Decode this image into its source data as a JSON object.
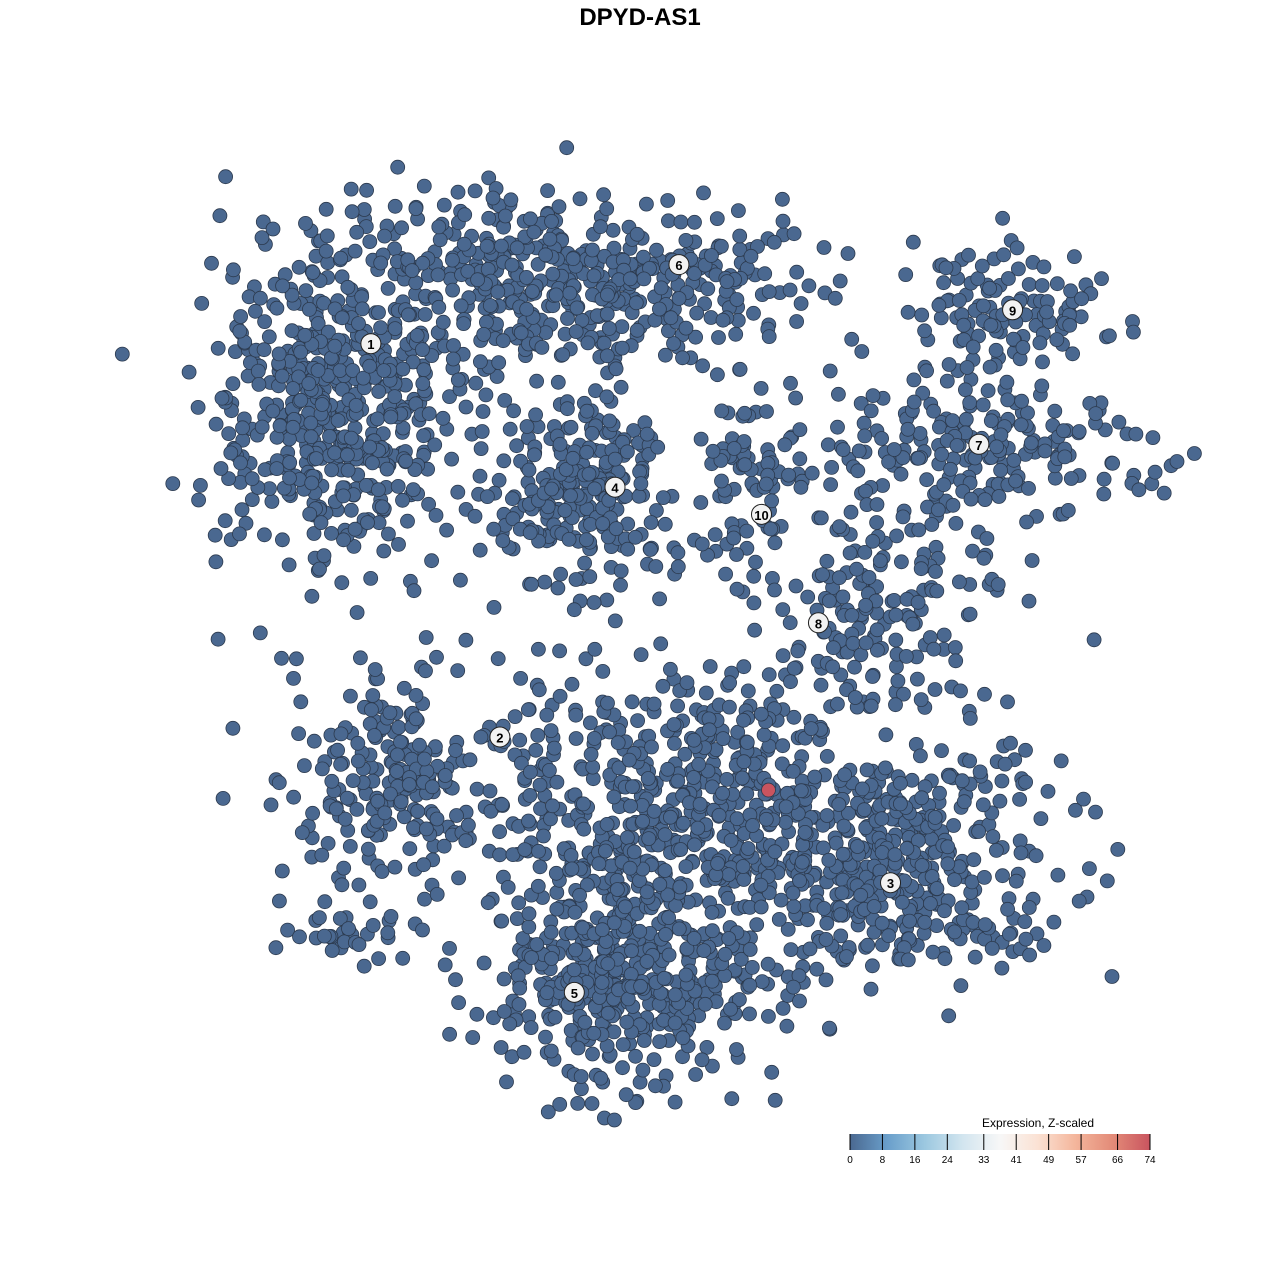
{
  "chart_data": {
    "type": "scatter",
    "title": "DPYD-AS1",
    "xlabel": "",
    "ylabel": "",
    "axes_visible": false,
    "grid": false,
    "xlim": [
      -40,
      40
    ],
    "ylim": [
      -40,
      40
    ],
    "point_color_default": "#4a6890",
    "clusters": [
      {
        "label": "1",
        "label_pos": [
          -25.3,
          26.0
        ],
        "center": [
          -28.6,
          20.1
        ],
        "spread": [
          5.2,
          7.1
        ],
        "n": 520
      },
      {
        "label": "6",
        "label_pos": [
          1.2,
          33.0
        ],
        "center": [
          -9.0,
          31.6
        ],
        "spread": [
          10.3,
          4.0
        ],
        "n": 520
      },
      {
        "label": "4",
        "label_pos": [
          -4.3,
          13.3
        ],
        "center": [
          -7.3,
          13.1
        ],
        "spread": [
          3.9,
          4.0
        ],
        "n": 260
      },
      {
        "label": "10",
        "label_pos": [
          8.3,
          10.9
        ],
        "center": [
          8.2,
          14.0
        ],
        "spread": [
          3.4,
          4.4
        ],
        "n": 90
      },
      {
        "label": "9",
        "label_pos": [
          29.9,
          29.0
        ],
        "center": [
          28.8,
          29.0
        ],
        "spread": [
          4.3,
          2.7
        ],
        "n": 120
      },
      {
        "label": "7",
        "label_pos": [
          27.0,
          17.1
        ],
        "center": [
          27.1,
          16.6
        ],
        "spread": [
          6.9,
          3.1
        ],
        "n": 200
      },
      {
        "label": "8",
        "label_pos": [
          13.2,
          1.3
        ],
        "center": [
          18.5,
          2.4
        ],
        "spread": [
          5.2,
          4.4
        ],
        "n": 170
      },
      {
        "label": "2",
        "label_pos": [
          -14.2,
          -8.8
        ],
        "center": [
          -22.8,
          -12.6
        ],
        "spread": [
          5.2,
          4.4
        ],
        "n": 230
      },
      {
        "label": "5",
        "label_pos": [
          -7.8,
          -31.4
        ],
        "center": [
          -3.9,
          -30.3
        ],
        "spread": [
          6.0,
          4.4
        ],
        "n": 420
      },
      {
        "label": "3",
        "label_pos": [
          19.4,
          -21.7
        ],
        "center": [
          20.2,
          -19.7
        ],
        "spread": [
          6.9,
          5.3
        ],
        "n": 420
      },
      {
        "label": "",
        "center": [
          1.3,
          -16.2
        ],
        "spread": [
          7.7,
          7.1
        ],
        "n": 620
      },
      {
        "label": "",
        "center": [
          -27.1,
          -25.9
        ],
        "spread": [
          2.6,
          1.8
        ],
        "n": 35
      }
    ],
    "highlight_points": [
      {
        "x": 8.9,
        "y": -13.5,
        "value": 74
      }
    ],
    "colorbar": {
      "title": "Expression, Z-scaled",
      "ticks": [
        "0",
        "8",
        "16",
        "24",
        "33",
        "41",
        "49",
        "57",
        "66",
        "74"
      ],
      "colors": [
        "#4a6890",
        "#6a9fcb",
        "#9cc8e0",
        "#d2e5ef",
        "#f7f7f7",
        "#fbe2d4",
        "#f4b69c",
        "#e38b78",
        "#c9545f"
      ],
      "placement": "bottom-right"
    }
  }
}
